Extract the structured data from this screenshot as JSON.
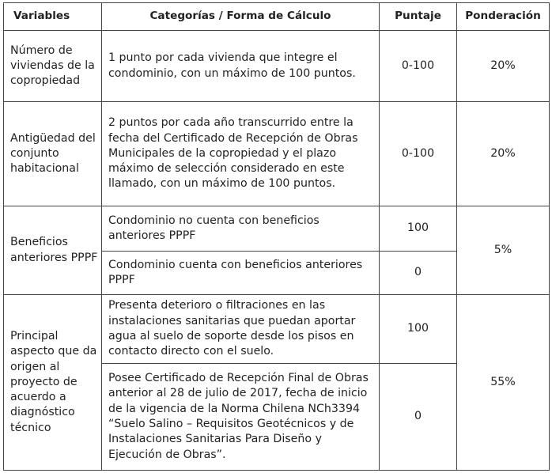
{
  "headers": {
    "variables": "Variables",
    "categorias": "Categorías / Forma de Cálculo",
    "puntaje": "Puntaje",
    "ponderacion": "Ponderación"
  },
  "rows": [
    {
      "variable": "Número de viviendas de la copropiedad",
      "categories": [
        {
          "text": "1 punto por cada vivienda que integre el condominio, con un máximo de 100 puntos.",
          "score": "0-100"
        }
      ],
      "weight": "20%"
    },
    {
      "variable": "Antigüedad del conjunto habitacional",
      "categories": [
        {
          "text": "2 puntos por cada año transcurrido entre la fecha del Certificado de Recepción de Obras Municipales de la copropiedad y el plazo máximo de selección considerado en este llamado, con un máximo de 100 puntos.",
          "score": "0-100"
        }
      ],
      "weight": "20%"
    },
    {
      "variable": "Beneficios anteriores PPPF",
      "categories": [
        {
          "text": "Condominio no cuenta con beneficios anteriores PPPF",
          "score": "100"
        },
        {
          "text": "Condominio cuenta con beneficios anteriores PPPF",
          "score": "0"
        }
      ],
      "weight": "5%"
    },
    {
      "variable": "Principal aspecto que da origen al proyecto de acuerdo a diagnóstico técnico",
      "categories": [
        {
          "text": "Presenta deterioro o filtraciones en las instalaciones sanitarias que puedan aportar agua al suelo de soporte desde los pisos en contacto directo con el suelo.",
          "score": "100"
        },
        {
          "text": "Posee Certificado de Recepción Final de Obras anterior al 28 de julio de 2017, fecha de inicio de la vigencia de la Norma Chilena NCh3394 “Suelo Salino – Requisitos Geotécnicos y de Instalaciones Sanitarias Para Diseño y Ejecución de Obras”.",
          "score": "0"
        }
      ],
      "weight": "55%"
    }
  ]
}
